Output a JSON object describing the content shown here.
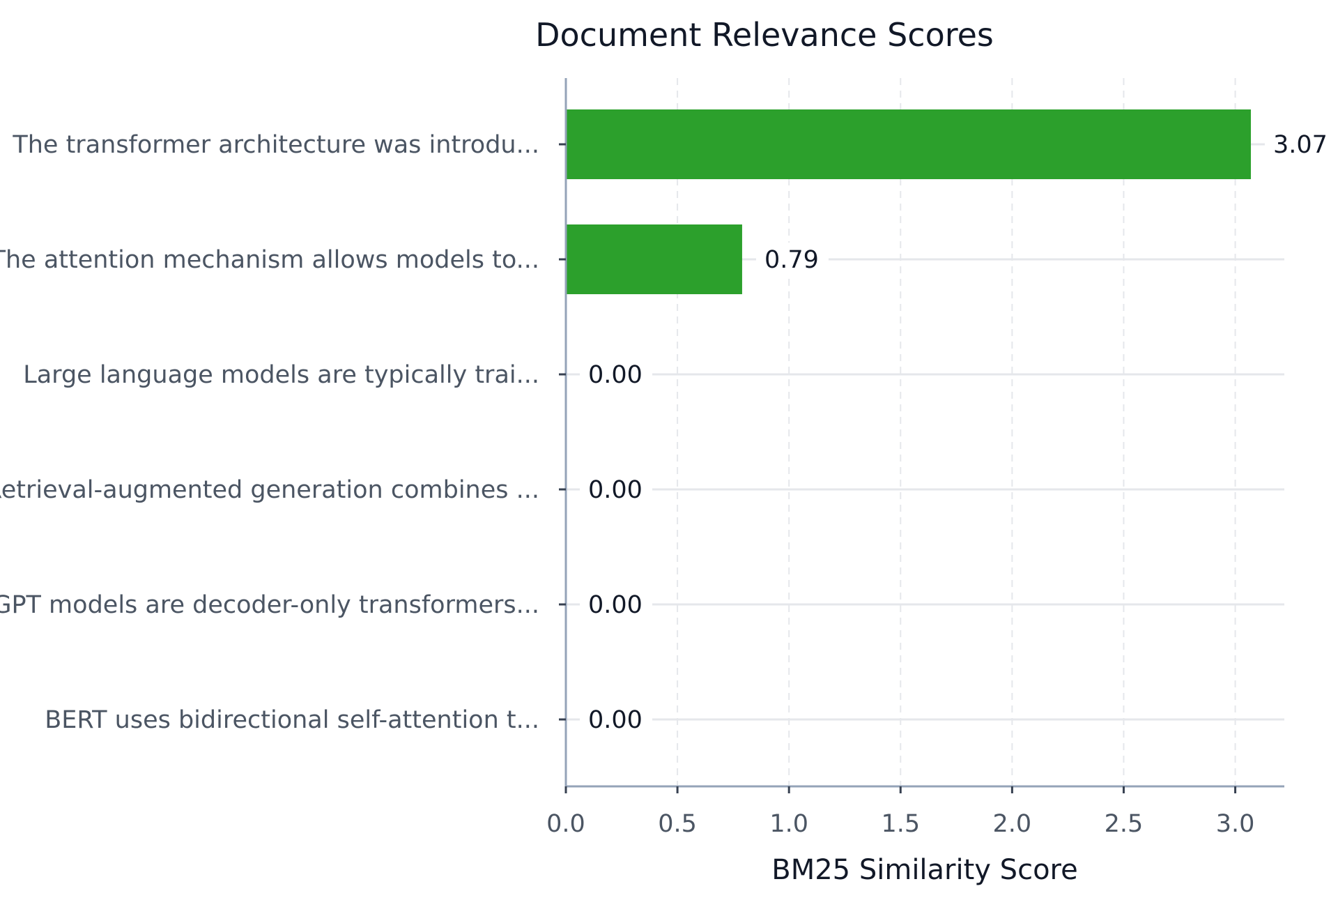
{
  "chart_data": {
    "type": "bar",
    "orientation": "horizontal",
    "title": "Document Relevance Scores",
    "xlabel": "BM25 Similarity Score",
    "ylabel": "",
    "xlim": [
      0,
      3.22
    ],
    "xticks": [
      0.0,
      0.5,
      1.0,
      1.5,
      2.0,
      2.5,
      3.0
    ],
    "xtick_labels": [
      "0.0",
      "0.5",
      "1.0",
      "1.5",
      "2.0",
      "2.5",
      "3.0"
    ],
    "categories": [
      "The transformer architecture was introdu...",
      "The attention mechanism allows models to...",
      "Large language models are typically trai...",
      "Retrieval-augmented generation combines ...",
      "GPT models are decoder-only transformers...",
      "BERT uses bidirectional self-attention t..."
    ],
    "values": [
      3.07,
      0.79,
      0.0,
      0.0,
      0.0,
      0.0
    ],
    "value_labels": [
      "3.07",
      "0.79",
      "0.00",
      "0.00",
      "0.00",
      "0.00"
    ],
    "bar_color": "#2ca02c",
    "grid": true
  }
}
